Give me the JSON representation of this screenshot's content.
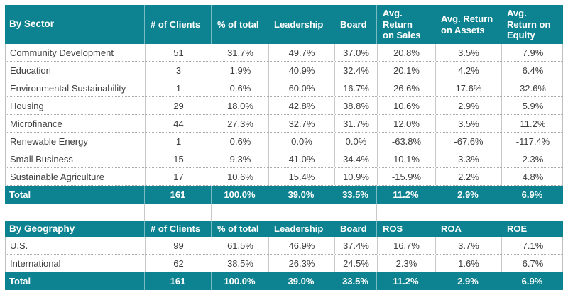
{
  "theme": {
    "teal": "#0d8290",
    "header_text": "#ffffff",
    "body_text": "#3e3e3e"
  },
  "chart_data": [
    {
      "type": "table",
      "title": "By Sector",
      "columns": [
        "By Sector",
        "# of Clients",
        "% of total",
        "Leadership",
        "Board",
        "Avg.\nReturn\non Sales",
        "Avg. Return\non Assets",
        "Avg.\nReturn on\nEquity"
      ],
      "rows": [
        [
          "Community Development",
          "51",
          "31.7%",
          "49.7%",
          "37.0%",
          "20.8%",
          "3.5%",
          "7.9%"
        ],
        [
          "Education",
          "3",
          "1.9%",
          "40.9%",
          "32.4%",
          "20.1%",
          "4.2%",
          "6.4%"
        ],
        [
          "Environmental Sustainability",
          "1",
          "0.6%",
          "60.0%",
          "16.7%",
          "26.6%",
          "17.6%",
          "32.6%"
        ],
        [
          "Housing",
          "29",
          "18.0%",
          "42.8%",
          "38.8%",
          "10.6%",
          "2.9%",
          "5.9%"
        ],
        [
          "Microfinance",
          "44",
          "27.3%",
          "32.7%",
          "31.7%",
          "12.0%",
          "3.5%",
          "11.2%"
        ],
        [
          "Renewable Energy",
          "1",
          "0.6%",
          "0.0%",
          "0.0%",
          "-63.8%",
          "-67.6%",
          "-117.4%"
        ],
        [
          "Small Business",
          "15",
          "9.3%",
          "41.0%",
          "34.4%",
          "10.1%",
          "3.3%",
          "2.3%"
        ],
        [
          "Sustainable Agriculture",
          "17",
          "10.6%",
          "15.4%",
          "10.9%",
          "-15.9%",
          "2.2%",
          "4.8%"
        ]
      ],
      "total_row": [
        "Total",
        "161",
        "100.0%",
        "39.0%",
        "33.5%",
        "11.2%",
        "2.9%",
        "6.9%"
      ]
    },
    {
      "type": "table",
      "title": "By Geography",
      "columns": [
        "By Geography",
        "# of Clients",
        "% of total",
        "Leadership",
        "Board",
        "ROS",
        "ROA",
        "ROE"
      ],
      "rows": [
        [
          "U.S.",
          "99",
          "61.5%",
          "46.9%",
          "37.4%",
          "16.7%",
          "3.7%",
          "7.1%"
        ],
        [
          "International",
          "62",
          "38.5%",
          "26.3%",
          "24.5%",
          "2.3%",
          "1.6%",
          "6.7%"
        ]
      ],
      "total_row": [
        "Total",
        "161",
        "100.0%",
        "39.0%",
        "33.5%",
        "11.2%",
        "2.9%",
        "6.9%"
      ]
    }
  ]
}
